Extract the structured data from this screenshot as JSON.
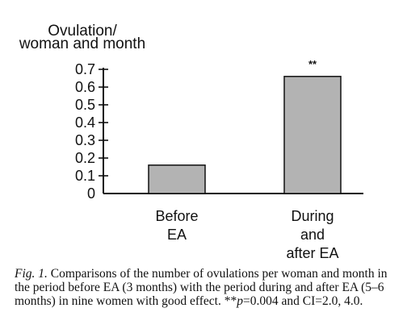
{
  "chart_data": {
    "type": "bar",
    "ylabel_lines": [
      "Ovulation/",
      "woman and month"
    ],
    "categories": [
      {
        "lines": [
          "Before",
          "EA"
        ]
      },
      {
        "lines": [
          "During",
          "and",
          "after EA"
        ]
      }
    ],
    "values": [
      0.16,
      0.66
    ],
    "yticks": [
      "0",
      "0.1",
      "0.2",
      "0.3",
      "0.4",
      "0.5",
      "0.6",
      "0.7"
    ],
    "ylim": [
      0,
      0.7
    ],
    "annotations": [
      {
        "category_index": 1,
        "text": "**"
      }
    ],
    "bar_color": "#b3b3b3",
    "grid": false
  },
  "caption": {
    "label": "Fig. 1.",
    "text_part1": " Comparisons of the number of ovulations per woman and month in the period before EA (3 months) with the period during and after EA (5–6 months) in nine women with good effect. **",
    "p_symbol": "p",
    "text_part2": "=0.004 and CI=2.0, 4.0."
  }
}
